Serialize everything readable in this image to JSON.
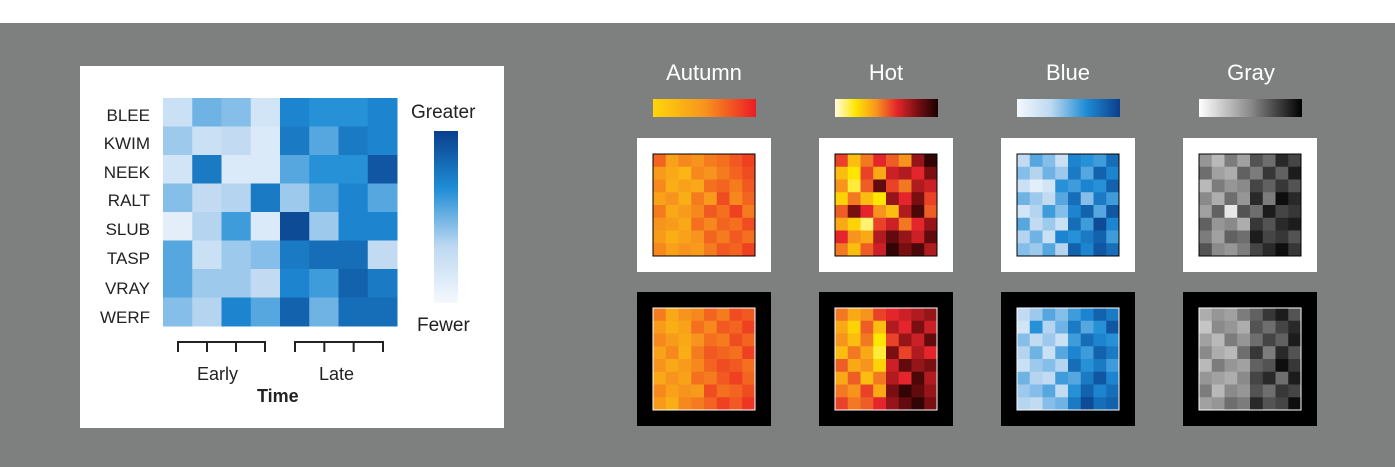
{
  "chart_data": [
    {
      "type": "heatmap",
      "rows": [
        "BLEE",
        "KWIM",
        "NEEK",
        "RALT",
        "SLUB",
        "TASP",
        "VRAY",
        "WERF"
      ],
      "xlabel": "Time",
      "group_labels": [
        "Early",
        "Late"
      ],
      "legend": {
        "high": "Greater",
        "low": "Fewer",
        "placement": "right"
      },
      "colormap": "Blue",
      "values": [
        [
          0.25,
          0.5,
          0.45,
          0.2,
          0.7,
          0.65,
          0.65,
          0.7
        ],
        [
          0.4,
          0.25,
          0.3,
          0.15,
          0.75,
          0.55,
          0.75,
          0.7
        ],
        [
          0.2,
          0.75,
          0.15,
          0.15,
          0.55,
          0.65,
          0.65,
          0.9
        ],
        [
          0.45,
          0.3,
          0.35,
          0.75,
          0.4,
          0.55,
          0.7,
          0.55
        ],
        [
          0.1,
          0.35,
          0.6,
          0.15,
          0.95,
          0.4,
          0.7,
          0.7
        ],
        [
          0.55,
          0.25,
          0.4,
          0.45,
          0.75,
          0.8,
          0.8,
          0.3
        ],
        [
          0.55,
          0.4,
          0.4,
          0.3,
          0.7,
          0.6,
          0.85,
          0.75
        ],
        [
          0.45,
          0.35,
          0.7,
          0.55,
          0.85,
          0.5,
          0.8,
          0.8
        ]
      ]
    },
    {
      "type": "heatmap",
      "title": "Autumn",
      "colormap": "Autumn",
      "background": "white",
      "values": [
        [
          0.7,
          0.4,
          0.55,
          0.5,
          0.6,
          0.65,
          0.75,
          0.85
        ],
        [
          0.45,
          0.35,
          0.25,
          0.55,
          0.5,
          0.6,
          0.7,
          0.8
        ],
        [
          0.55,
          0.3,
          0.4,
          0.35,
          0.65,
          0.7,
          0.6,
          0.75
        ],
        [
          0.4,
          0.5,
          0.3,
          0.6,
          0.45,
          0.8,
          0.55,
          0.7
        ],
        [
          0.6,
          0.35,
          0.45,
          0.55,
          0.75,
          0.65,
          0.85,
          0.6
        ],
        [
          0.5,
          0.45,
          0.35,
          0.65,
          0.55,
          0.7,
          0.65,
          0.8
        ],
        [
          0.45,
          0.3,
          0.4,
          0.5,
          0.7,
          0.6,
          0.75,
          0.65
        ],
        [
          0.55,
          0.4,
          0.5,
          0.45,
          0.6,
          0.75,
          0.7,
          0.85
        ]
      ]
    },
    {
      "type": "heatmap",
      "title": "Hot",
      "colormap": "Hot",
      "background": "white",
      "values": [
        [
          0.55,
          0.3,
          0.45,
          0.6,
          0.5,
          0.4,
          0.75,
          0.95
        ],
        [
          0.3,
          0.2,
          0.55,
          0.35,
          0.65,
          0.7,
          0.6,
          0.8
        ],
        [
          0.4,
          0.15,
          0.5,
          0.85,
          0.55,
          0.45,
          0.7,
          0.65
        ],
        [
          0.25,
          0.45,
          0.3,
          0.2,
          0.75,
          0.6,
          0.8,
          0.55
        ],
        [
          0.5,
          0.8,
          0.6,
          0.4,
          0.3,
          0.7,
          0.9,
          0.5
        ],
        [
          0.35,
          0.25,
          0.1,
          0.55,
          0.65,
          0.45,
          0.6,
          0.75
        ],
        [
          0.6,
          0.4,
          0.35,
          0.7,
          0.85,
          0.75,
          0.65,
          0.85
        ],
        [
          0.45,
          0.3,
          0.5,
          0.65,
          0.95,
          0.8,
          0.9,
          0.7
        ]
      ]
    },
    {
      "type": "heatmap",
      "title": "Blue",
      "colormap": "Blue",
      "background": "white",
      "values": [
        [
          0.3,
          0.55,
          0.45,
          0.25,
          0.7,
          0.65,
          0.6,
          0.8
        ],
        [
          0.45,
          0.35,
          0.5,
          0.4,
          0.75,
          0.55,
          0.85,
          0.7
        ],
        [
          0.25,
          0.1,
          0.2,
          0.65,
          0.6,
          0.7,
          0.65,
          0.85
        ],
        [
          0.5,
          0.4,
          0.3,
          0.55,
          0.8,
          0.45,
          0.75,
          0.6
        ],
        [
          0.2,
          0.35,
          0.6,
          0.45,
          0.7,
          0.85,
          0.55,
          0.9
        ],
        [
          0.55,
          0.3,
          0.4,
          0.25,
          0.8,
          0.6,
          0.95,
          0.7
        ],
        [
          0.35,
          0.5,
          0.25,
          0.7,
          0.65,
          0.75,
          0.85,
          0.6
        ],
        [
          0.45,
          0.4,
          0.55,
          0.35,
          0.85,
          0.7,
          0.9,
          0.8
        ]
      ]
    },
    {
      "type": "heatmap",
      "title": "Gray",
      "colormap": "Gray",
      "background": "white",
      "values": [
        [
          0.45,
          0.3,
          0.55,
          0.4,
          0.7,
          0.6,
          0.85,
          0.75
        ],
        [
          0.6,
          0.4,
          0.35,
          0.65,
          0.55,
          0.8,
          0.65,
          0.9
        ],
        [
          0.3,
          0.55,
          0.45,
          0.5,
          0.75,
          0.65,
          0.8,
          0.7
        ],
        [
          0.5,
          0.35,
          0.6,
          0.45,
          0.85,
          0.55,
          0.95,
          0.85
        ],
        [
          0.4,
          0.65,
          0.1,
          0.7,
          0.6,
          0.9,
          0.75,
          0.8
        ],
        [
          0.65,
          0.45,
          0.5,
          0.35,
          0.8,
          0.7,
          0.85,
          0.9
        ],
        [
          0.55,
          0.4,
          0.65,
          0.6,
          0.9,
          0.75,
          0.8,
          0.7
        ],
        [
          0.7,
          0.5,
          0.45,
          0.55,
          0.75,
          0.85,
          0.95,
          0.8
        ]
      ]
    },
    {
      "type": "heatmap",
      "title": "Autumn",
      "colormap": "Autumn",
      "background": "black",
      "values": [
        [
          0.6,
          0.35,
          0.5,
          0.55,
          0.7,
          0.6,
          0.8,
          0.75
        ],
        [
          0.45,
          0.3,
          0.4,
          0.65,
          0.55,
          0.75,
          0.7,
          0.85
        ],
        [
          0.55,
          0.45,
          0.35,
          0.5,
          0.65,
          0.6,
          0.8,
          0.7
        ],
        [
          0.4,
          0.55,
          0.3,
          0.6,
          0.75,
          0.7,
          0.65,
          0.85
        ],
        [
          0.5,
          0.35,
          0.45,
          0.55,
          0.7,
          0.8,
          0.75,
          0.65
        ],
        [
          0.35,
          0.5,
          0.4,
          0.65,
          0.6,
          0.75,
          0.85,
          0.7
        ],
        [
          0.55,
          0.4,
          0.5,
          0.45,
          0.8,
          0.65,
          0.7,
          0.8
        ],
        [
          0.45,
          0.3,
          0.55,
          0.6,
          0.7,
          0.85,
          0.75,
          0.9
        ]
      ]
    },
    {
      "type": "heatmap",
      "title": "Hot",
      "colormap": "Hot",
      "background": "black",
      "values": [
        [
          0.45,
          0.35,
          0.4,
          0.55,
          0.6,
          0.65,
          0.7,
          0.75
        ],
        [
          0.35,
          0.25,
          0.5,
          0.3,
          0.7,
          0.6,
          0.8,
          0.65
        ],
        [
          0.4,
          0.3,
          0.45,
          0.2,
          0.55,
          0.75,
          0.65,
          0.85
        ],
        [
          0.3,
          0.45,
          0.35,
          0.15,
          0.8,
          0.55,
          0.7,
          0.6
        ],
        [
          0.5,
          0.35,
          0.4,
          0.25,
          0.65,
          0.85,
          0.75,
          0.8
        ],
        [
          0.35,
          0.5,
          0.3,
          0.45,
          0.7,
          0.6,
          0.9,
          0.7
        ],
        [
          0.45,
          0.4,
          0.55,
          0.35,
          0.8,
          0.95,
          0.85,
          0.75
        ],
        [
          0.55,
          0.45,
          0.5,
          0.6,
          0.75,
          0.85,
          0.95,
          0.8
        ]
      ]
    },
    {
      "type": "heatmap",
      "title": "Blue",
      "colormap": "Blue",
      "background": "black",
      "values": [
        [
          0.3,
          0.4,
          0.55,
          0.45,
          0.6,
          0.7,
          0.85,
          0.75
        ],
        [
          0.2,
          0.65,
          0.35,
          0.5,
          0.75,
          0.55,
          0.65,
          0.9
        ],
        [
          0.45,
          0.3,
          0.4,
          0.25,
          0.6,
          0.8,
          0.7,
          0.65
        ],
        [
          0.35,
          0.5,
          0.25,
          0.55,
          0.7,
          0.6,
          0.85,
          0.75
        ],
        [
          0.25,
          0.4,
          0.45,
          0.35,
          0.8,
          0.65,
          0.75,
          0.6
        ],
        [
          0.5,
          0.35,
          0.3,
          0.6,
          0.55,
          0.75,
          0.9,
          0.7
        ],
        [
          0.4,
          0.45,
          0.55,
          0.3,
          0.65,
          0.85,
          0.7,
          0.8
        ],
        [
          0.35,
          0.3,
          0.45,
          0.5,
          0.75,
          0.95,
          0.8,
          0.85
        ]
      ]
    },
    {
      "type": "heatmap",
      "title": "Gray",
      "colormap": "Gray",
      "background": "black",
      "values": [
        [
          0.35,
          0.45,
          0.4,
          0.55,
          0.65,
          0.8,
          0.9,
          0.7
        ],
        [
          0.25,
          0.5,
          0.45,
          0.35,
          0.7,
          0.6,
          0.75,
          0.85
        ],
        [
          0.4,
          0.3,
          0.55,
          0.45,
          0.6,
          0.75,
          0.65,
          0.9
        ],
        [
          0.5,
          0.35,
          0.3,
          0.6,
          0.8,
          0.55,
          0.85,
          0.7
        ],
        [
          0.3,
          0.55,
          0.45,
          0.4,
          0.65,
          0.7,
          0.95,
          0.8
        ],
        [
          0.45,
          0.4,
          0.35,
          0.5,
          0.75,
          0.85,
          0.6,
          0.9
        ],
        [
          0.55,
          0.3,
          0.5,
          0.45,
          0.7,
          0.6,
          0.8,
          0.75
        ],
        [
          0.4,
          0.45,
          0.6,
          0.55,
          0.85,
          0.7,
          0.75,
          0.95
        ]
      ]
    }
  ],
  "colormaps": {
    "Autumn": [
      "#ffd60a",
      "#f7941d",
      "#ec1c24"
    ],
    "Hot": [
      "#fffde0",
      "#ffe600",
      "#f7941d",
      "#e4262c",
      "#7a0f12",
      "#1a0000"
    ],
    "Blue": [
      "#f4f8fd",
      "#bcd8f1",
      "#1f8dd6",
      "#0a3f8c"
    ],
    "Gray": [
      "#ffffff",
      "#8a8a8a",
      "#000000"
    ]
  },
  "legend_titles": [
    "Autumn",
    "Hot",
    "Blue",
    "Gray"
  ]
}
